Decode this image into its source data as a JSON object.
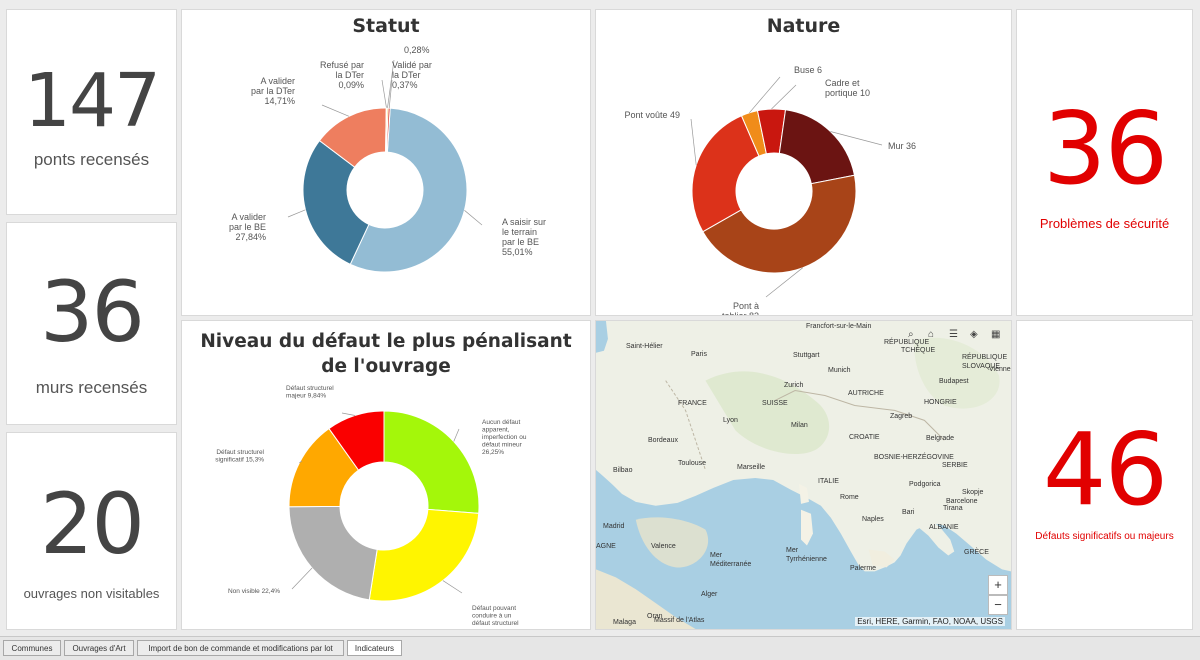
{
  "kpis": {
    "ponts": {
      "value": "147",
      "label": "ponts recensés"
    },
    "murs": {
      "value": "36",
      "label": "murs recensés"
    },
    "non_visitables": {
      "value": "20",
      "label": "ouvrages non visitables"
    },
    "securite": {
      "value": "36",
      "label": "Problèmes de sécurité"
    },
    "defauts": {
      "value": "46",
      "label": "Défauts significatifs ou majeurs"
    }
  },
  "colors": {
    "kpi_dark": "#444444",
    "kpi_red": "#e10000"
  },
  "chart_data": [
    {
      "type": "pie",
      "title": "Statut",
      "donut": true,
      "slices": [
        {
          "lines": [
            "A saisir sur",
            "le terrain",
            "par le BE",
            "55,01%"
          ],
          "value": 55.01,
          "color": "#93bcd4"
        },
        {
          "lines": [
            "A valider",
            "par le BE",
            "27,84%"
          ],
          "value": 27.84,
          "color": "#3e7898"
        },
        {
          "lines": [
            "A valider",
            "par la DTer",
            "14,71%"
          ],
          "value": 14.71,
          "color": "#ee7e5f"
        },
        {
          "lines": [
            "Refusé par",
            "la DTer",
            "0,09%"
          ],
          "value": 0.09,
          "color": "#b5a334"
        },
        {
          "lines": [
            "0,28%"
          ],
          "value": 0.28,
          "color": "#f5d44c"
        },
        {
          "lines": [
            "Validé par",
            "la DTer",
            "0,37%"
          ],
          "value": 0.37,
          "color": "#d7301f"
        }
      ]
    },
    {
      "type": "pie",
      "title": "Nature",
      "donut": true,
      "slices": [
        {
          "lines": [
            "Buse 6"
          ],
          "value": 6,
          "color": "#f08c1a"
        },
        {
          "lines": [
            "Cadre et",
            "portique 10"
          ],
          "value": 10,
          "color": "#c9170f"
        },
        {
          "lines": [
            "Mur 36"
          ],
          "value": 36,
          "color": "#6b1412"
        },
        {
          "lines": [
            "Pont à",
            "tablier 82"
          ],
          "value": 82,
          "color": "#a84418"
        },
        {
          "lines": [
            "Pont voûte 49"
          ],
          "value": 49,
          "color": "#dc321a"
        }
      ]
    },
    {
      "type": "pie",
      "title": "Niveau du défaut le plus pénalisant de l'ouvrage",
      "donut": true,
      "slices": [
        {
          "lines": [
            "Aucun défaut",
            "apparent,",
            "imperfection ou",
            "défaut mineur",
            "26,25%"
          ],
          "value": 26.25,
          "color": "#a4f70a"
        },
        {
          "lines": [
            "Défaut pouvant",
            "conduire à un",
            "défaut structurel"
          ],
          "value": 26.25,
          "color": "#fff500"
        },
        {
          "lines": [
            "Non visible 22,4%"
          ],
          "value": 22.4,
          "color": "#afafaf"
        },
        {
          "lines": [
            "Défaut structurel",
            "significatif 15,3%"
          ],
          "value": 15.3,
          "color": "#ffa800"
        },
        {
          "lines": [
            "Défaut structurel",
            "majeur 9,84%"
          ],
          "value": 9.84,
          "color": "#fa0000"
        }
      ]
    }
  ],
  "map": {
    "labels": [
      "Saint-Hélier",
      "Paris",
      "Stuttgart",
      "Munich",
      "RÉPUBLIQUE",
      "TCHÈQUE",
      "RÉPUBLIQUE",
      "SLOVAQUE",
      "Budapest",
      "Vienne",
      "Zurich",
      "AUTRICHE",
      "FRANCE",
      "SUISSE",
      "HONGRIE",
      "Lyon",
      "Zagreb",
      "Milan",
      "Bordeaux",
      "CROATIE",
      "Belgrade",
      "BOSNIE-HERZÉGOVINE",
      "SERBIE",
      "Toulouse",
      "Marseille",
      "Bilbao",
      "ITALIE",
      "Podgorica",
      "Rome",
      "Skopje",
      "Barcelone",
      "Bari",
      "Tirana",
      "Madrid",
      "Naples",
      "ALBANIE",
      "Valence",
      "Mer",
      "Tyrrhénienne",
      "Mer",
      "Méditerranée",
      "GRÈCE",
      "Palerme",
      "Alger",
      "Massif de l'Atlas",
      "Oran",
      "Malaga",
      "Francfort-sur-le-Main",
      "AGNE"
    ],
    "attribution": "Esri, HERE, Garmin, FAO, NOAA, USGS",
    "zoom_in": "+",
    "zoom_out": "−"
  },
  "tabs": [
    "Communes",
    "Ouvrages d'Art",
    "Import de bon de commande et modifications par lot",
    "Indicateurs"
  ],
  "active_tab": "Indicateurs"
}
